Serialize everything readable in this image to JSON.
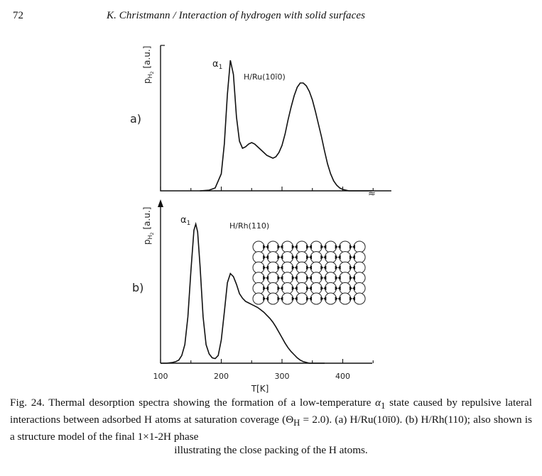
{
  "header": {
    "page_number": "72",
    "running_title": "K. Christmann / Interaction of hydrogen with solid surfaces"
  },
  "figure": {
    "panel_a": {
      "panel_label": "a)",
      "ylabel": "p",
      "ylabel_sub": "H",
      "ylabel_sub2": "2",
      "ylabel_units": "[a.u.]",
      "system": "H/Ru(10ī0)",
      "peak_label": "α",
      "peak_label_sub": "1"
    },
    "panel_b": {
      "panel_label": "b)",
      "ylabel": "p",
      "ylabel_sub": "H",
      "ylabel_sub2": "2",
      "ylabel_units": "[a.u.]",
      "system": "H/Rh(110)",
      "peak_label": "α",
      "peak_label_sub": "1"
    },
    "xlabel": "T[K]",
    "xticks": [
      "100",
      "200",
      "300",
      "400"
    ],
    "structure_model": {
      "rows": 6,
      "columns": 8
    }
  },
  "chart_data": [
    {
      "type": "line",
      "panel": "a",
      "title": "H/Ru(10ī0)",
      "xlabel": "T[K]",
      "ylabel": "pH2 [a.u.]",
      "xlim": [
        100,
        480
      ],
      "ylim": [
        0,
        1
      ],
      "x": [
        165,
        180,
        190,
        200,
        205,
        210,
        215,
        220,
        225,
        230,
        235,
        240,
        245,
        250,
        255,
        260,
        265,
        270,
        275,
        280,
        285,
        290,
        295,
        300,
        305,
        310,
        315,
        320,
        325,
        330,
        335,
        340,
        345,
        350,
        355,
        360,
        365,
        370,
        375,
        380,
        385,
        390,
        395,
        400,
        405,
        410,
        415,
        420,
        425,
        430,
        435,
        440,
        450,
        460,
        470,
        480
      ],
      "y": [
        0.0,
        0.005,
        0.02,
        0.12,
        0.33,
        0.68,
        0.92,
        0.82,
        0.52,
        0.35,
        0.3,
        0.31,
        0.33,
        0.34,
        0.33,
        0.31,
        0.29,
        0.27,
        0.25,
        0.24,
        0.23,
        0.24,
        0.27,
        0.32,
        0.4,
        0.5,
        0.59,
        0.67,
        0.73,
        0.76,
        0.76,
        0.74,
        0.7,
        0.64,
        0.56,
        0.47,
        0.38,
        0.28,
        0.19,
        0.12,
        0.07,
        0.04,
        0.02,
        0.01,
        0.005,
        0.0,
        0.0,
        0.0,
        0.0,
        0.0,
        0.0,
        0.0,
        0.0,
        0.0,
        0.0,
        0.0
      ]
    },
    {
      "type": "line",
      "panel": "b",
      "title": "H/Rh(110)",
      "xlabel": "T[K]",
      "ylabel": "pH2 [a.u.]",
      "xlim": [
        100,
        480
      ],
      "ylim": [
        0,
        1
      ],
      "xticks": [
        100,
        200,
        300,
        400
      ],
      "x": [
        100,
        110,
        120,
        125,
        130,
        135,
        140,
        145,
        150,
        155,
        158,
        161,
        165,
        170,
        175,
        180,
        185,
        190,
        195,
        200,
        205,
        210,
        215,
        220,
        225,
        230,
        235,
        240,
        245,
        250,
        255,
        260,
        265,
        270,
        275,
        280,
        285,
        290,
        295,
        300,
        305,
        310,
        315,
        320,
        325,
        330,
        335,
        340,
        345,
        350,
        355,
        360,
        370
      ],
      "y": [
        0.0,
        0.0,
        0.005,
        0.01,
        0.02,
        0.05,
        0.12,
        0.3,
        0.6,
        0.86,
        0.9,
        0.85,
        0.63,
        0.3,
        0.12,
        0.06,
        0.035,
        0.03,
        0.05,
        0.15,
        0.33,
        0.52,
        0.58,
        0.56,
        0.51,
        0.45,
        0.42,
        0.4,
        0.39,
        0.38,
        0.37,
        0.36,
        0.345,
        0.33,
        0.31,
        0.29,
        0.265,
        0.235,
        0.2,
        0.165,
        0.13,
        0.1,
        0.075,
        0.055,
        0.035,
        0.02,
        0.01,
        0.005,
        0.0,
        0.0,
        0.0,
        0.0,
        0.0
      ]
    }
  ],
  "caption": {
    "lead": "Fig. 24. Thermal desorption spectra showing the formation of a low-temperature ",
    "alpha": "α",
    "alpha_sub": "1",
    "line1_rest": " state caused by repulsive lateral interactions between adsorbed H atoms at saturation coverage (",
    "theta": "Θ",
    "theta_sub": "H",
    "theta_value": " = 2.0). (a) H/Ru(10ī0). (b) H/Rh(110); also shown is a structure model of the final 1×1-2H phase",
    "last_line": "illustrating the close packing of the H atoms."
  }
}
